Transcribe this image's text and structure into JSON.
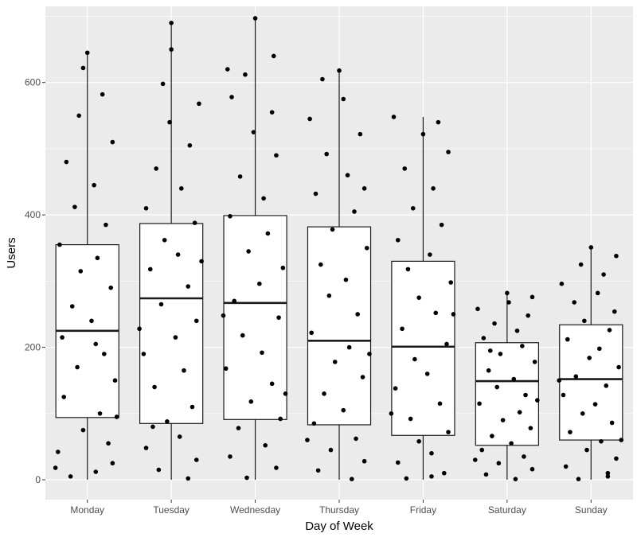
{
  "chart_data": {
    "type": "box",
    "title": "",
    "xlabel": "Day of Week",
    "ylabel": "Users",
    "ylim": [
      -30,
      715
    ],
    "y_ticks": [
      0,
      200,
      400,
      600
    ],
    "grid": true,
    "colors": {
      "panel_background": "#ebebeb",
      "grid_major": "#ffffff",
      "box_fill": "#ffffff",
      "box_stroke": "#1a1a1a",
      "point": "#000000"
    },
    "categories": [
      "Monday",
      "Tuesday",
      "Wednesday",
      "Thursday",
      "Friday",
      "Saturday",
      "Sunday"
    ],
    "boxes": [
      {
        "min": 0,
        "q1": 94,
        "median": 225,
        "q3": 355,
        "max": 645
      },
      {
        "min": 0,
        "q1": 85,
        "median": 274,
        "q3": 387,
        "max": 692
      },
      {
        "min": 0,
        "q1": 91,
        "median": 267,
        "q3": 399,
        "max": 697
      },
      {
        "min": 0,
        "q1": 83,
        "median": 210,
        "q3": 382,
        "max": 618
      },
      {
        "min": 0,
        "q1": 67,
        "median": 201,
        "q3": 330,
        "max": 548
      },
      {
        "min": 0,
        "q1": 52,
        "median": 149,
        "q3": 207,
        "max": 282
      },
      {
        "min": 0,
        "q1": 60,
        "median": 152,
        "q3": 234,
        "max": 351
      }
    ],
    "points": [
      [
        {
          "j": -0.2,
          "y": 5
        },
        {
          "j": 0.1,
          "y": 12
        },
        {
          "j": 0.3,
          "y": 25
        },
        {
          "j": -0.35,
          "y": 42
        },
        {
          "j": 0.25,
          "y": 55
        },
        {
          "j": -0.05,
          "y": 75
        },
        {
          "j": 0.15,
          "y": 100
        },
        {
          "j": -0.28,
          "y": 125
        },
        {
          "j": 0.33,
          "y": 150
        },
        {
          "j": -0.12,
          "y": 170
        },
        {
          "j": 0.2,
          "y": 190
        },
        {
          "j": -0.3,
          "y": 215
        },
        {
          "j": 0.05,
          "y": 240
        },
        {
          "j": -0.18,
          "y": 262
        },
        {
          "j": 0.28,
          "y": 290
        },
        {
          "j": -0.08,
          "y": 315
        },
        {
          "j": 0.12,
          "y": 335
        },
        {
          "j": -0.33,
          "y": 355
        },
        {
          "j": 0.22,
          "y": 385
        },
        {
          "j": -0.15,
          "y": 412
        },
        {
          "j": 0.08,
          "y": 445
        },
        {
          "j": -0.25,
          "y": 480
        },
        {
          "j": 0.3,
          "y": 510
        },
        {
          "j": -0.1,
          "y": 550
        },
        {
          "j": 0.18,
          "y": 582
        },
        {
          "j": -0.05,
          "y": 622
        },
        {
          "j": 0.0,
          "y": 645
        },
        {
          "j": 0.35,
          "y": 95
        },
        {
          "j": -0.38,
          "y": 18
        },
        {
          "j": 0.1,
          "y": 205
        }
      ],
      [
        {
          "j": 0.2,
          "y": 2
        },
        {
          "j": -0.15,
          "y": 15
        },
        {
          "j": 0.3,
          "y": 30
        },
        {
          "j": -0.3,
          "y": 48
        },
        {
          "j": 0.1,
          "y": 65
        },
        {
          "j": -0.05,
          "y": 88
        },
        {
          "j": 0.25,
          "y": 110
        },
        {
          "j": -0.2,
          "y": 140
        },
        {
          "j": 0.15,
          "y": 165
        },
        {
          "j": -0.33,
          "y": 190
        },
        {
          "j": 0.05,
          "y": 215
        },
        {
          "j": 0.3,
          "y": 240
        },
        {
          "j": -0.12,
          "y": 265
        },
        {
          "j": 0.2,
          "y": 292
        },
        {
          "j": -0.25,
          "y": 318
        },
        {
          "j": 0.08,
          "y": 340
        },
        {
          "j": -0.08,
          "y": 362
        },
        {
          "j": 0.28,
          "y": 388
        },
        {
          "j": -0.3,
          "y": 410
        },
        {
          "j": 0.12,
          "y": 440
        },
        {
          "j": -0.18,
          "y": 470
        },
        {
          "j": 0.22,
          "y": 505
        },
        {
          "j": -0.02,
          "y": 540
        },
        {
          "j": 0.33,
          "y": 568
        },
        {
          "j": -0.1,
          "y": 598
        },
        {
          "j": 0.0,
          "y": 650
        },
        {
          "j": 0.0,
          "y": 690
        },
        {
          "j": -0.38,
          "y": 228
        },
        {
          "j": 0.36,
          "y": 330
        },
        {
          "j": -0.22,
          "y": 80
        }
      ],
      [
        {
          "j": -0.1,
          "y": 3
        },
        {
          "j": 0.25,
          "y": 18
        },
        {
          "j": -0.3,
          "y": 35
        },
        {
          "j": 0.12,
          "y": 52
        },
        {
          "j": -0.2,
          "y": 78
        },
        {
          "j": 0.3,
          "y": 92
        },
        {
          "j": -0.05,
          "y": 118
        },
        {
          "j": 0.2,
          "y": 145
        },
        {
          "j": -0.35,
          "y": 168
        },
        {
          "j": 0.08,
          "y": 192
        },
        {
          "j": -0.15,
          "y": 218
        },
        {
          "j": 0.28,
          "y": 245
        },
        {
          "j": -0.25,
          "y": 270
        },
        {
          "j": 0.05,
          "y": 296
        },
        {
          "j": 0.33,
          "y": 320
        },
        {
          "j": -0.08,
          "y": 345
        },
        {
          "j": 0.15,
          "y": 372
        },
        {
          "j": -0.3,
          "y": 398
        },
        {
          "j": 0.1,
          "y": 425
        },
        {
          "j": -0.18,
          "y": 458
        },
        {
          "j": 0.25,
          "y": 490
        },
        {
          "j": -0.02,
          "y": 525
        },
        {
          "j": 0.2,
          "y": 555
        },
        {
          "j": -0.28,
          "y": 578
        },
        {
          "j": -0.12,
          "y": 612
        },
        {
          "j": 0.22,
          "y": 640
        },
        {
          "j": 0.0,
          "y": 697
        },
        {
          "j": -0.38,
          "y": 248
        },
        {
          "j": 0.36,
          "y": 130
        },
        {
          "j": -0.33,
          "y": 620
        }
      ],
      [
        {
          "j": 0.15,
          "y": 1
        },
        {
          "j": -0.25,
          "y": 14
        },
        {
          "j": 0.3,
          "y": 28
        },
        {
          "j": -0.1,
          "y": 45
        },
        {
          "j": 0.2,
          "y": 62
        },
        {
          "j": -0.3,
          "y": 85
        },
        {
          "j": 0.05,
          "y": 105
        },
        {
          "j": -0.18,
          "y": 130
        },
        {
          "j": 0.28,
          "y": 155
        },
        {
          "j": -0.05,
          "y": 178
        },
        {
          "j": 0.12,
          "y": 200
        },
        {
          "j": -0.33,
          "y": 222
        },
        {
          "j": 0.22,
          "y": 250
        },
        {
          "j": -0.12,
          "y": 278
        },
        {
          "j": 0.08,
          "y": 302
        },
        {
          "j": -0.22,
          "y": 325
        },
        {
          "j": 0.33,
          "y": 350
        },
        {
          "j": -0.08,
          "y": 378
        },
        {
          "j": 0.18,
          "y": 405
        },
        {
          "j": -0.28,
          "y": 432
        },
        {
          "j": 0.1,
          "y": 460
        },
        {
          "j": -0.15,
          "y": 492
        },
        {
          "j": 0.25,
          "y": 522
        },
        {
          "j": -0.35,
          "y": 545
        },
        {
          "j": 0.05,
          "y": 575
        },
        {
          "j": -0.2,
          "y": 605
        },
        {
          "j": 0.0,
          "y": 618
        },
        {
          "j": 0.36,
          "y": 190
        },
        {
          "j": -0.38,
          "y": 60
        },
        {
          "j": 0.3,
          "y": 440
        }
      ],
      [
        {
          "j": -0.2,
          "y": 2
        },
        {
          "j": 0.25,
          "y": 10
        },
        {
          "j": -0.3,
          "y": 26
        },
        {
          "j": 0.1,
          "y": 40
        },
        {
          "j": -0.05,
          "y": 58
        },
        {
          "j": 0.3,
          "y": 72
        },
        {
          "j": -0.15,
          "y": 92
        },
        {
          "j": 0.2,
          "y": 115
        },
        {
          "j": -0.33,
          "y": 138
        },
        {
          "j": 0.05,
          "y": 160
        },
        {
          "j": -0.1,
          "y": 182
        },
        {
          "j": 0.28,
          "y": 205
        },
        {
          "j": -0.25,
          "y": 228
        },
        {
          "j": 0.15,
          "y": 252
        },
        {
          "j": -0.05,
          "y": 275
        },
        {
          "j": 0.33,
          "y": 298
        },
        {
          "j": -0.18,
          "y": 318
        },
        {
          "j": 0.08,
          "y": 340
        },
        {
          "j": -0.3,
          "y": 362
        },
        {
          "j": 0.22,
          "y": 385
        },
        {
          "j": -0.12,
          "y": 410
        },
        {
          "j": 0.12,
          "y": 440
        },
        {
          "j": -0.22,
          "y": 470
        },
        {
          "j": 0.3,
          "y": 495
        },
        {
          "j": 0.0,
          "y": 522
        },
        {
          "j": 0.18,
          "y": 540
        },
        {
          "j": -0.35,
          "y": 548
        },
        {
          "j": 0.36,
          "y": 250
        },
        {
          "j": -0.38,
          "y": 100
        },
        {
          "j": 0.1,
          "y": 5
        }
      ],
      [
        {
          "j": 0.1,
          "y": 1
        },
        {
          "j": -0.25,
          "y": 8
        },
        {
          "j": 0.3,
          "y": 16
        },
        {
          "j": -0.1,
          "y": 25
        },
        {
          "j": 0.2,
          "y": 35
        },
        {
          "j": -0.3,
          "y": 45
        },
        {
          "j": 0.05,
          "y": 55
        },
        {
          "j": -0.18,
          "y": 66
        },
        {
          "j": 0.28,
          "y": 78
        },
        {
          "j": -0.05,
          "y": 90
        },
        {
          "j": 0.15,
          "y": 102
        },
        {
          "j": -0.33,
          "y": 115
        },
        {
          "j": 0.22,
          "y": 128
        },
        {
          "j": -0.12,
          "y": 140
        },
        {
          "j": 0.08,
          "y": 152
        },
        {
          "j": -0.22,
          "y": 165
        },
        {
          "j": 0.33,
          "y": 178
        },
        {
          "j": -0.08,
          "y": 190
        },
        {
          "j": 0.18,
          "y": 202
        },
        {
          "j": -0.28,
          "y": 214
        },
        {
          "j": 0.12,
          "y": 225
        },
        {
          "j": -0.15,
          "y": 236
        },
        {
          "j": 0.25,
          "y": 248
        },
        {
          "j": -0.35,
          "y": 258
        },
        {
          "j": 0.02,
          "y": 268
        },
        {
          "j": 0.3,
          "y": 276
        },
        {
          "j": 0.0,
          "y": 282
        },
        {
          "j": -0.38,
          "y": 30
        },
        {
          "j": 0.36,
          "y": 120
        },
        {
          "j": -0.2,
          "y": 195
        }
      ],
      [
        {
          "j": -0.15,
          "y": 1
        },
        {
          "j": 0.2,
          "y": 10
        },
        {
          "j": -0.3,
          "y": 20
        },
        {
          "j": 0.3,
          "y": 32
        },
        {
          "j": -0.05,
          "y": 45
        },
        {
          "j": 0.12,
          "y": 58
        },
        {
          "j": -0.25,
          "y": 72
        },
        {
          "j": 0.25,
          "y": 86
        },
        {
          "j": -0.1,
          "y": 100
        },
        {
          "j": 0.05,
          "y": 114
        },
        {
          "j": -0.33,
          "y": 128
        },
        {
          "j": 0.18,
          "y": 142
        },
        {
          "j": -0.18,
          "y": 156
        },
        {
          "j": 0.33,
          "y": 170
        },
        {
          "j": -0.02,
          "y": 184
        },
        {
          "j": 0.1,
          "y": 198
        },
        {
          "j": -0.28,
          "y": 212
        },
        {
          "j": 0.22,
          "y": 226
        },
        {
          "j": -0.08,
          "y": 240
        },
        {
          "j": 0.28,
          "y": 254
        },
        {
          "j": -0.2,
          "y": 268
        },
        {
          "j": 0.08,
          "y": 282
        },
        {
          "j": -0.35,
          "y": 296
        },
        {
          "j": 0.15,
          "y": 310
        },
        {
          "j": -0.12,
          "y": 325
        },
        {
          "j": 0.3,
          "y": 338
        },
        {
          "j": 0.0,
          "y": 351
        },
        {
          "j": 0.36,
          "y": 60
        },
        {
          "j": -0.38,
          "y": 150
        },
        {
          "j": 0.2,
          "y": 5
        }
      ]
    ]
  }
}
